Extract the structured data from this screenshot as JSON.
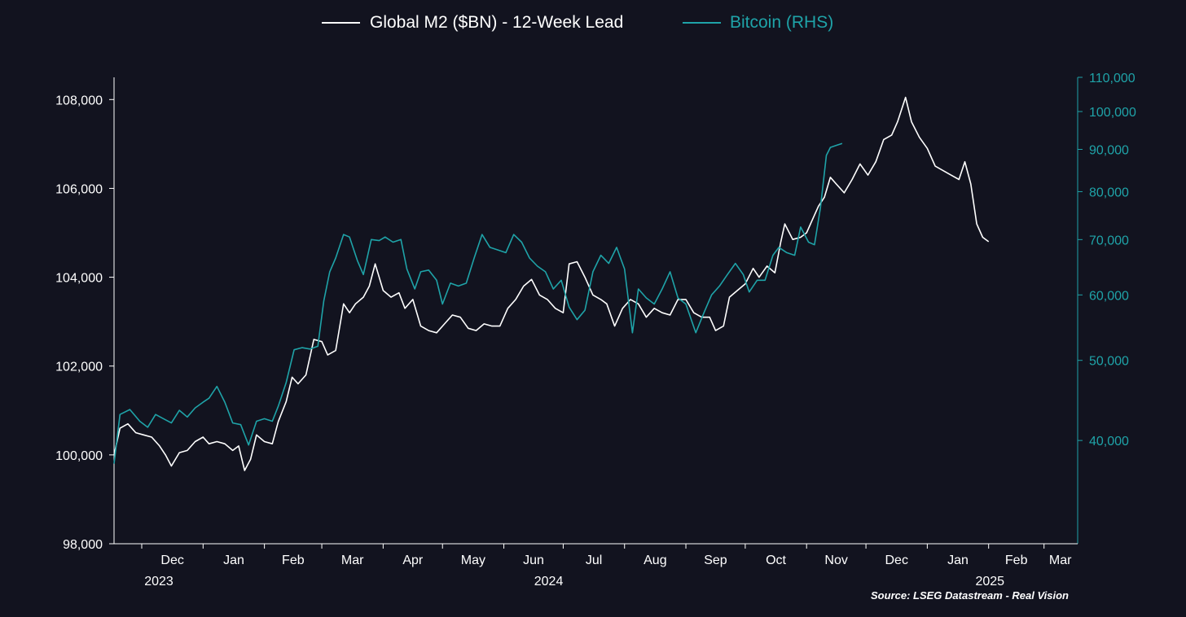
{
  "colors": {
    "background": "#12131f",
    "m2": "#ffffff",
    "btc": "#1fa3a8",
    "axis_left": "#ffffff",
    "axis_right": "#1fa3a8"
  },
  "legend": [
    {
      "label": "Global M2 ($BN) - 12-Week Lead",
      "color": "#ffffff"
    },
    {
      "label": "Bitcoin (RHS)",
      "color": "#1fa3a8"
    }
  ],
  "source": "Source: LSEG Datastream - Real Vision",
  "chart_data": {
    "type": "line",
    "legend_position": "top-center",
    "grid": false,
    "x_ticks": [
      "Dec",
      "Jan",
      "Feb",
      "Mar",
      "Apr",
      "May",
      "Jun",
      "Jul",
      "Aug",
      "Sep",
      "Oct",
      "Nov",
      "Dec",
      "Jan",
      "Feb",
      "Mar"
    ],
    "x_tick_dates": [
      "2023-12-01",
      "2024-01-01",
      "2024-02-01",
      "2024-03-01",
      "2024-04-01",
      "2024-05-01",
      "2024-06-01",
      "2024-07-01",
      "2024-08-01",
      "2024-09-01",
      "2024-10-01",
      "2024-11-01",
      "2024-12-01",
      "2025-01-01",
      "2025-02-01",
      "2025-03-01"
    ],
    "year_labels": [
      {
        "label": "2023",
        "date": "2023-12-01"
      },
      {
        "label": "2024",
        "date": "2024-06-15"
      },
      {
        "label": "2025",
        "date": "2025-01-24"
      }
    ],
    "xlim": [
      "2023-11-17",
      "2025-03-18"
    ],
    "y_left": {
      "range": [
        98000,
        108500
      ],
      "ticks": [
        98000,
        100000,
        102000,
        104000,
        106000,
        108000
      ],
      "tick_labels": [
        "98,000",
        "100,000",
        "102,000",
        "104,000",
        "106,000",
        "108,000"
      ]
    },
    "y_right": {
      "scale": "log",
      "range": [
        30000,
        110000
      ],
      "ticks": [
        40000,
        50000,
        60000,
        70000,
        80000,
        90000,
        100000,
        110000
      ],
      "tick_labels": [
        "40,000",
        "50,000",
        "60,000",
        "70,000",
        "80,000",
        "90,000",
        "100,000",
        "110,000"
      ]
    },
    "series": [
      {
        "name": "Global M2 ($BN) - 12-Week Lead",
        "axis": "left",
        "points": [
          [
            "2023-11-17",
            100000
          ],
          [
            "2023-11-20",
            100600
          ],
          [
            "2023-11-24",
            100700
          ],
          [
            "2023-11-28",
            100500
          ],
          [
            "2023-12-02",
            100450
          ],
          [
            "2023-12-06",
            100400
          ],
          [
            "2023-12-10",
            100200
          ],
          [
            "2023-12-13",
            100000
          ],
          [
            "2023-12-16",
            99750
          ],
          [
            "2023-12-20",
            100050
          ],
          [
            "2023-12-24",
            100100
          ],
          [
            "2023-12-28",
            100300
          ],
          [
            "2024-01-01",
            100400
          ],
          [
            "2024-01-04",
            100250
          ],
          [
            "2024-01-08",
            100300
          ],
          [
            "2024-01-12",
            100250
          ],
          [
            "2024-01-16",
            100100
          ],
          [
            "2024-01-19",
            100200
          ],
          [
            "2024-01-22",
            99650
          ],
          [
            "2024-01-25",
            99900
          ],
          [
            "2024-01-28",
            100450
          ],
          [
            "2024-02-01",
            100300
          ],
          [
            "2024-02-05",
            100250
          ],
          [
            "2024-02-08",
            100750
          ],
          [
            "2024-02-12",
            101200
          ],
          [
            "2024-02-15",
            101750
          ],
          [
            "2024-02-18",
            101600
          ],
          [
            "2024-02-22",
            101800
          ],
          [
            "2024-02-26",
            102600
          ],
          [
            "2024-03-01",
            102550
          ],
          [
            "2024-03-04",
            102250
          ],
          [
            "2024-03-08",
            102350
          ],
          [
            "2024-03-12",
            103400
          ],
          [
            "2024-03-15",
            103200
          ],
          [
            "2024-03-18",
            103400
          ],
          [
            "2024-03-22",
            103550
          ],
          [
            "2024-03-25",
            103800
          ],
          [
            "2024-03-28",
            104300
          ],
          [
            "2024-04-01",
            103700
          ],
          [
            "2024-04-05",
            103550
          ],
          [
            "2024-04-09",
            103650
          ],
          [
            "2024-04-12",
            103300
          ],
          [
            "2024-04-16",
            103500
          ],
          [
            "2024-04-20",
            102900
          ],
          [
            "2024-04-24",
            102800
          ],
          [
            "2024-04-28",
            102750
          ],
          [
            "2024-05-02",
            102950
          ],
          [
            "2024-05-06",
            103150
          ],
          [
            "2024-05-10",
            103100
          ],
          [
            "2024-05-14",
            102850
          ],
          [
            "2024-05-18",
            102800
          ],
          [
            "2024-05-22",
            102950
          ],
          [
            "2024-05-26",
            102900
          ],
          [
            "2024-05-30",
            102900
          ],
          [
            "2024-06-03",
            103300
          ],
          [
            "2024-06-07",
            103500
          ],
          [
            "2024-06-11",
            103800
          ],
          [
            "2024-06-15",
            103950
          ],
          [
            "2024-06-19",
            103600
          ],
          [
            "2024-06-23",
            103500
          ],
          [
            "2024-06-27",
            103300
          ],
          [
            "2024-07-01",
            103200
          ],
          [
            "2024-07-04",
            104300
          ],
          [
            "2024-07-08",
            104350
          ],
          [
            "2024-07-12",
            104000
          ],
          [
            "2024-07-16",
            103600
          ],
          [
            "2024-07-20",
            103500
          ],
          [
            "2024-07-23",
            103400
          ],
          [
            "2024-07-27",
            102900
          ],
          [
            "2024-07-31",
            103300
          ],
          [
            "2024-08-04",
            103500
          ],
          [
            "2024-08-08",
            103400
          ],
          [
            "2024-08-12",
            103100
          ],
          [
            "2024-08-16",
            103300
          ],
          [
            "2024-08-20",
            103200
          ],
          [
            "2024-08-24",
            103150
          ],
          [
            "2024-08-28",
            103500
          ],
          [
            "2024-09-01",
            103500
          ],
          [
            "2024-09-05",
            103200
          ],
          [
            "2024-09-09",
            103100
          ],
          [
            "2024-09-13",
            103100
          ],
          [
            "2024-09-16",
            102800
          ],
          [
            "2024-09-20",
            102900
          ],
          [
            "2024-09-23",
            103550
          ],
          [
            "2024-09-27",
            103700
          ],
          [
            "2024-10-01",
            103850
          ],
          [
            "2024-10-05",
            104200
          ],
          [
            "2024-10-08",
            104000
          ],
          [
            "2024-10-12",
            104250
          ],
          [
            "2024-10-16",
            104100
          ],
          [
            "2024-10-19",
            104800
          ],
          [
            "2024-10-21",
            105200
          ],
          [
            "2024-10-25",
            104850
          ],
          [
            "2024-10-29",
            104900
          ],
          [
            "2024-11-01",
            105000
          ],
          [
            "2024-11-04",
            105300
          ],
          [
            "2024-11-07",
            105600
          ],
          [
            "2024-11-10",
            105800
          ],
          [
            "2024-11-13",
            106250
          ],
          [
            "2024-11-16",
            106100
          ],
          [
            "2024-11-20",
            105900
          ],
          [
            "2024-11-24",
            106200
          ],
          [
            "2024-11-28",
            106550
          ],
          [
            "2024-12-02",
            106300
          ],
          [
            "2024-12-06",
            106600
          ],
          [
            "2024-12-10",
            107100
          ],
          [
            "2024-12-14",
            107200
          ],
          [
            "2024-12-17",
            107500
          ],
          [
            "2024-12-21",
            108050
          ],
          [
            "2024-12-24",
            107500
          ],
          [
            "2024-12-28",
            107150
          ],
          [
            "2025-01-01",
            106900
          ],
          [
            "2025-01-05",
            106500
          ],
          [
            "2025-01-09",
            106400
          ],
          [
            "2025-01-13",
            106300
          ],
          [
            "2025-01-17",
            106200
          ],
          [
            "2025-01-20",
            106600
          ],
          [
            "2025-01-23",
            106100
          ],
          [
            "2025-01-26",
            105200
          ],
          [
            "2025-01-29",
            104900
          ],
          [
            "2025-02-01",
            104800
          ]
        ]
      },
      {
        "name": "Bitcoin (RHS)",
        "axis": "right",
        "points": [
          [
            "2023-11-17",
            37500
          ],
          [
            "2023-11-20",
            43000
          ],
          [
            "2023-11-25",
            43600
          ],
          [
            "2023-11-30",
            42200
          ],
          [
            "2023-12-04",
            41500
          ],
          [
            "2023-12-08",
            43000
          ],
          [
            "2023-12-12",
            42500
          ],
          [
            "2023-12-16",
            42000
          ],
          [
            "2023-12-20",
            43500
          ],
          [
            "2023-12-24",
            42700
          ],
          [
            "2023-12-28",
            43800
          ],
          [
            "2024-01-01",
            44500
          ],
          [
            "2024-01-04",
            45000
          ],
          [
            "2024-01-08",
            46500
          ],
          [
            "2024-01-12",
            44500
          ],
          [
            "2024-01-16",
            42000
          ],
          [
            "2024-01-20",
            41800
          ],
          [
            "2024-01-24",
            39500
          ],
          [
            "2024-01-28",
            42200
          ],
          [
            "2024-02-01",
            42500
          ],
          [
            "2024-02-05",
            42200
          ],
          [
            "2024-02-08",
            44000
          ],
          [
            "2024-02-12",
            47000
          ],
          [
            "2024-02-16",
            51500
          ],
          [
            "2024-02-20",
            51800
          ],
          [
            "2024-02-24",
            51600
          ],
          [
            "2024-02-28",
            52000
          ],
          [
            "2024-03-02",
            59000
          ],
          [
            "2024-03-05",
            64000
          ],
          [
            "2024-03-08",
            66500
          ],
          [
            "2024-03-12",
            71000
          ],
          [
            "2024-03-15",
            70500
          ],
          [
            "2024-03-19",
            66000
          ],
          [
            "2024-03-22",
            63500
          ],
          [
            "2024-03-26",
            70000
          ],
          [
            "2024-03-30",
            69800
          ],
          [
            "2024-04-02",
            70500
          ],
          [
            "2024-04-06",
            69500
          ],
          [
            "2024-04-10",
            70000
          ],
          [
            "2024-04-13",
            64500
          ],
          [
            "2024-04-17",
            61000
          ],
          [
            "2024-04-20",
            64000
          ],
          [
            "2024-04-24",
            64300
          ],
          [
            "2024-04-28",
            62500
          ],
          [
            "2024-05-01",
            58500
          ],
          [
            "2024-05-05",
            62000
          ],
          [
            "2024-05-09",
            61500
          ],
          [
            "2024-05-13",
            62000
          ],
          [
            "2024-05-17",
            66500
          ],
          [
            "2024-05-21",
            71000
          ],
          [
            "2024-05-25",
            68500
          ],
          [
            "2024-05-29",
            68000
          ],
          [
            "2024-06-02",
            67500
          ],
          [
            "2024-06-06",
            71000
          ],
          [
            "2024-06-10",
            69500
          ],
          [
            "2024-06-14",
            66500
          ],
          [
            "2024-06-18",
            65000
          ],
          [
            "2024-06-22",
            64000
          ],
          [
            "2024-06-26",
            61000
          ],
          [
            "2024-06-30",
            62500
          ],
          [
            "2024-07-04",
            58000
          ],
          [
            "2024-07-08",
            56000
          ],
          [
            "2024-07-12",
            57500
          ],
          [
            "2024-07-16",
            64000
          ],
          [
            "2024-07-20",
            67000
          ],
          [
            "2024-07-24",
            65500
          ],
          [
            "2024-07-28",
            68500
          ],
          [
            "2024-08-01",
            64500
          ],
          [
            "2024-08-05",
            54000
          ],
          [
            "2024-08-08",
            61000
          ],
          [
            "2024-08-12",
            59500
          ],
          [
            "2024-08-16",
            58500
          ],
          [
            "2024-08-20",
            61000
          ],
          [
            "2024-08-24",
            64000
          ],
          [
            "2024-08-28",
            59500
          ],
          [
            "2024-09-01",
            58500
          ],
          [
            "2024-09-06",
            54000
          ],
          [
            "2024-09-10",
            57000
          ],
          [
            "2024-09-14",
            60000
          ],
          [
            "2024-09-18",
            61500
          ],
          [
            "2024-09-22",
            63500
          ],
          [
            "2024-09-26",
            65500
          ],
          [
            "2024-09-30",
            63500
          ],
          [
            "2024-10-03",
            60500
          ],
          [
            "2024-10-07",
            62500
          ],
          [
            "2024-10-11",
            62500
          ],
          [
            "2024-10-15",
            67000
          ],
          [
            "2024-10-18",
            68500
          ],
          [
            "2024-10-22",
            67500
          ],
          [
            "2024-10-26",
            67000
          ],
          [
            "2024-10-29",
            72500
          ],
          [
            "2024-11-02",
            69500
          ],
          [
            "2024-11-05",
            69000
          ],
          [
            "2024-11-08",
            76500
          ],
          [
            "2024-11-11",
            88500
          ],
          [
            "2024-11-13",
            90500
          ],
          [
            "2024-11-16",
            91000
          ],
          [
            "2024-11-19",
            91500
          ]
        ]
      }
    ]
  }
}
